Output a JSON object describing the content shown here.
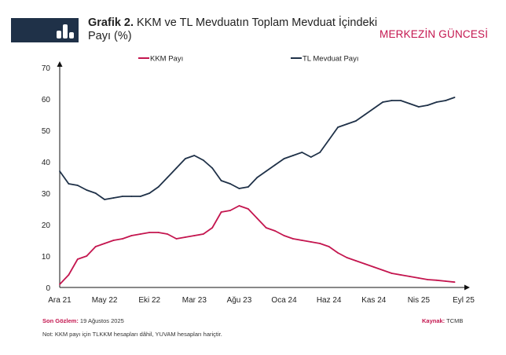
{
  "header": {
    "title_bold": "Grafik 2.",
    "title_rest": " KKM ve TL Mevduatın Toplam Mevduat İçindeki Payı (%)",
    "brand": "MERKEZİN GÜNCESİ"
  },
  "footer": {
    "last_obs_label": "Son Gözlem:",
    "last_obs_value": " 19 Ağustos 2025",
    "source_label": "Kaynak:",
    "source_value": " TCMB",
    "note": "Not: KKM payı için TLKKM hesapları dâhil, YUVAM hesapları hariçtir."
  },
  "chart_data": {
    "type": "line",
    "title": "KKM ve TL Mevduatın Toplam Mevduat İçindeki Payı (%)",
    "xlabel": "",
    "ylabel": "",
    "ylim": [
      0,
      70
    ],
    "yticks": [
      0,
      10,
      20,
      30,
      40,
      50,
      60,
      70
    ],
    "xtick_labels": [
      "Ara 21",
      "May 22",
      "Eki 22",
      "Mar 23",
      "Ağu 23",
      "Oca 24",
      "Haz 24",
      "Kas 24",
      "Nis 25",
      "Eyl 25"
    ],
    "x_months_from_dec21": [
      0,
      1,
      2,
      3,
      4,
      5,
      6,
      7,
      8,
      9,
      10,
      11,
      12,
      13,
      14,
      15,
      16,
      17,
      18,
      19,
      20,
      21,
      22,
      23,
      24,
      25,
      26,
      27,
      28,
      29,
      30,
      31,
      32,
      33,
      34,
      35,
      36,
      37,
      38,
      39,
      40,
      41,
      42,
      43,
      44
    ],
    "legend": "top",
    "series": [
      {
        "name": "KKM Payı",
        "color": "#c4164f",
        "values": [
          1,
          4,
          9,
          10,
          13,
          14,
          15,
          15.5,
          16.5,
          17,
          17.5,
          17.5,
          17,
          15.5,
          16,
          16.5,
          17,
          19,
          24,
          24.5,
          26,
          25,
          22,
          19,
          18,
          16.5,
          15.5,
          15,
          14.5,
          14,
          13,
          11,
          9.5,
          8.5,
          7.5,
          6.5,
          5.5,
          4.5,
          4,
          3.5,
          3,
          2.5,
          2.3,
          2,
          1.7
        ]
      },
      {
        "name": "TL Mevduat Payı",
        "color": "#1f3148",
        "values": [
          37,
          33,
          32.5,
          31,
          30,
          28,
          28.5,
          29,
          29,
          29,
          30,
          32,
          35,
          38,
          41,
          42,
          40.5,
          38,
          34,
          33,
          31.5,
          32,
          35,
          37,
          39,
          41,
          42,
          43,
          41.5,
          43,
          47,
          51,
          52,
          53,
          55,
          57,
          59,
          59.5,
          59.5,
          58.5,
          57.5,
          58,
          59,
          59.5,
          60.5
        ]
      }
    ]
  }
}
